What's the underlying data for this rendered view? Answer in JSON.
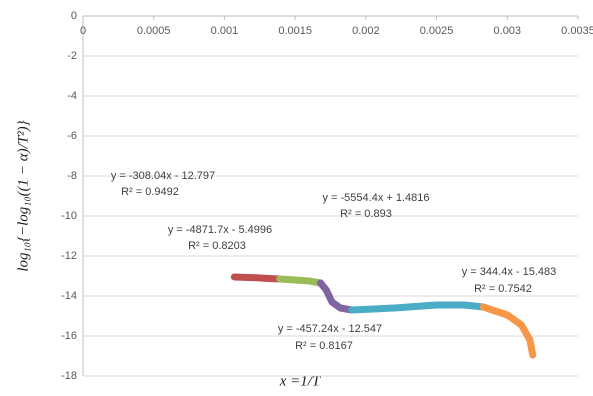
{
  "chart_data": {
    "type": "line",
    "x_label": "x  =1/T",
    "y_label": "log₁₀{−log₁₀((1 − α)/T²)}",
    "xlim": [
      0,
      0.0035
    ],
    "xticks": [
      0,
      0.0005,
      0.001,
      0.0015,
      0.002,
      0.0025,
      0.003,
      0.0035
    ],
    "ylim": [
      -18,
      0
    ],
    "yticks": [
      0,
      -2,
      -4,
      -6,
      -8,
      -10,
      -12,
      -14,
      -16,
      -18
    ],
    "grid": true,
    "series": [
      {
        "color": "#c0504d",
        "x": [
          0.00107,
          0.0012,
          0.0013,
          0.00139
        ],
        "values": [
          -13.05,
          -13.08,
          -13.12,
          -13.15
        ]
      },
      {
        "color": "#9bbb59",
        "x": [
          0.00139,
          0.0015,
          0.0016,
          0.00168
        ],
        "values": [
          -13.15,
          -13.2,
          -13.25,
          -13.35
        ]
      },
      {
        "color": "#8064a2",
        "x": [
          0.00168,
          0.00172,
          0.00176,
          0.00182,
          0.0019
        ],
        "values": [
          -13.35,
          -13.7,
          -14.3,
          -14.6,
          -14.7
        ]
      },
      {
        "color": "#4bacc6",
        "x": [
          0.0019,
          0.0022,
          0.0025,
          0.0027,
          0.00283
        ],
        "values": [
          -14.7,
          -14.6,
          -14.45,
          -14.45,
          -14.55
        ]
      },
      {
        "color": "#f79646",
        "x": [
          0.00283,
          0.003,
          0.0031,
          0.00316,
          0.00318
        ],
        "values": [
          -14.55,
          -14.95,
          -15.45,
          -16.2,
          -16.95
        ]
      }
    ],
    "annotations": [
      {
        "equation": "y = -308.04x - 12.797",
        "r2": "R² = 0.9492"
      },
      {
        "equation": "y = -4871.7x - 5.4996",
        "r2": "R² = 0.8203"
      },
      {
        "equation": "y = -5554.4x + 1.4816",
        "r2": "R² = 0.893"
      },
      {
        "equation": "y = 344.4x - 15.483",
        "r2": "R² = 0.7542"
      },
      {
        "equation": "y = -457.24x - 12.547",
        "r2": "R² = 0.8167"
      }
    ]
  }
}
